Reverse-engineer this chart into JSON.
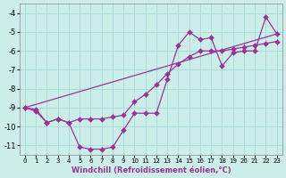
{
  "xlabel": "Windchill (Refroidissement éolien,°C)",
  "bg_color": "#cceee8",
  "grid_color": "#aadddd",
  "line_color": "#993399",
  "xlim": [
    -0.5,
    23.5
  ],
  "ylim": [
    -11.5,
    -3.5
  ],
  "yticks": [
    -11,
    -10,
    -9,
    -8,
    -7,
    -6,
    -5,
    -4
  ],
  "xticks": [
    0,
    1,
    2,
    3,
    4,
    5,
    6,
    7,
    8,
    9,
    10,
    11,
    12,
    13,
    14,
    15,
    16,
    17,
    18,
    19,
    20,
    21,
    22,
    23
  ],
  "curve1_x": [
    0,
    1,
    2,
    3,
    4,
    5,
    6,
    7,
    8,
    9,
    10,
    11,
    12,
    13,
    14,
    15,
    16,
    17,
    18,
    19,
    20,
    21,
    22,
    23
  ],
  "curve1_y": [
    -9.0,
    -9.2,
    -9.8,
    -9.6,
    -9.8,
    -11.1,
    -11.2,
    -11.2,
    -11.1,
    -10.2,
    -9.3,
    -9.3,
    -9.3,
    -7.5,
    -5.7,
    -5.0,
    -5.4,
    -5.3,
    -6.8,
    -6.1,
    -6.0,
    -6.0,
    -4.2,
    -5.1
  ],
  "curve2_x": [
    0,
    1,
    2,
    3,
    4,
    5,
    6,
    7,
    8,
    9,
    10,
    11,
    12,
    13,
    14,
    15,
    16,
    17,
    18,
    19,
    20,
    21,
    22,
    23
  ],
  "curve2_y": [
    -9.0,
    -9.1,
    -9.8,
    -9.6,
    -9.8,
    -9.6,
    -9.6,
    -9.6,
    -9.5,
    -9.4,
    -8.7,
    -8.3,
    -7.8,
    -7.2,
    -6.7,
    -6.3,
    -6.0,
    -6.0,
    -6.0,
    -5.9,
    -5.8,
    -5.7,
    -5.6,
    -5.5
  ],
  "trend_x": [
    0,
    23
  ],
  "trend_y": [
    -9.0,
    -5.1
  ],
  "markersize": 3.0
}
